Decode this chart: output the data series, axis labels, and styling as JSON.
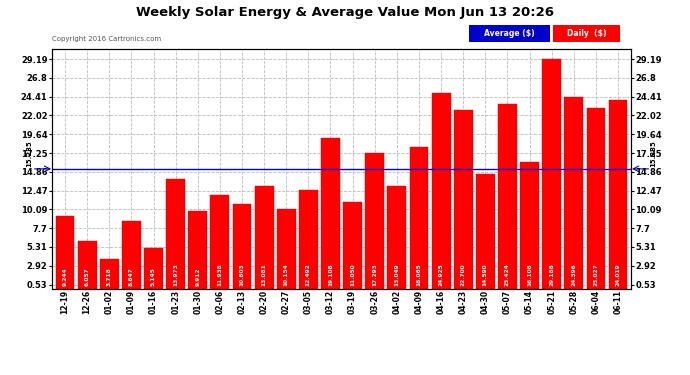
{
  "title": "Weekly Solar Energy & Average Value Mon Jun 13 20:26",
  "copyright": "Copyright 2016 Cartronics.com",
  "categories": [
    "12-19",
    "12-26",
    "01-02",
    "01-09",
    "01-16",
    "01-23",
    "01-30",
    "02-06",
    "02-13",
    "02-20",
    "02-27",
    "03-05",
    "03-12",
    "03-19",
    "03-26",
    "04-02",
    "04-09",
    "04-16",
    "04-23",
    "04-30",
    "05-07",
    "05-14",
    "05-21",
    "05-28",
    "06-04",
    "06-11"
  ],
  "values": [
    9.244,
    6.057,
    3.718,
    8.647,
    5.145,
    13.973,
    9.912,
    11.938,
    10.803,
    13.081,
    10.154,
    12.492,
    19.108,
    11.05,
    17.293,
    13.049,
    18.065,
    24.925,
    22.7,
    14.59,
    23.424,
    16.108,
    29.188,
    24.396,
    23.027,
    24.019
  ],
  "average_value": 15.235,
  "bar_color": "#ff0000",
  "average_line_color": "#0000cd",
  "background_color": "#ffffff",
  "plot_bg_color": "#ffffff",
  "grid_color": "#bbbbbb",
  "yticks": [
    0.53,
    2.92,
    5.31,
    7.7,
    10.09,
    12.47,
    14.86,
    17.25,
    19.64,
    22.02,
    24.41,
    26.8,
    29.19
  ],
  "legend_avg_bg": "#0000cc",
  "legend_daily_bg": "#ff0000",
  "legend_avg_text": "Average ($)",
  "legend_daily_text": "Daily  ($)",
  "avg_label": "15.235",
  "ymin": 0.0,
  "ymax": 30.5
}
